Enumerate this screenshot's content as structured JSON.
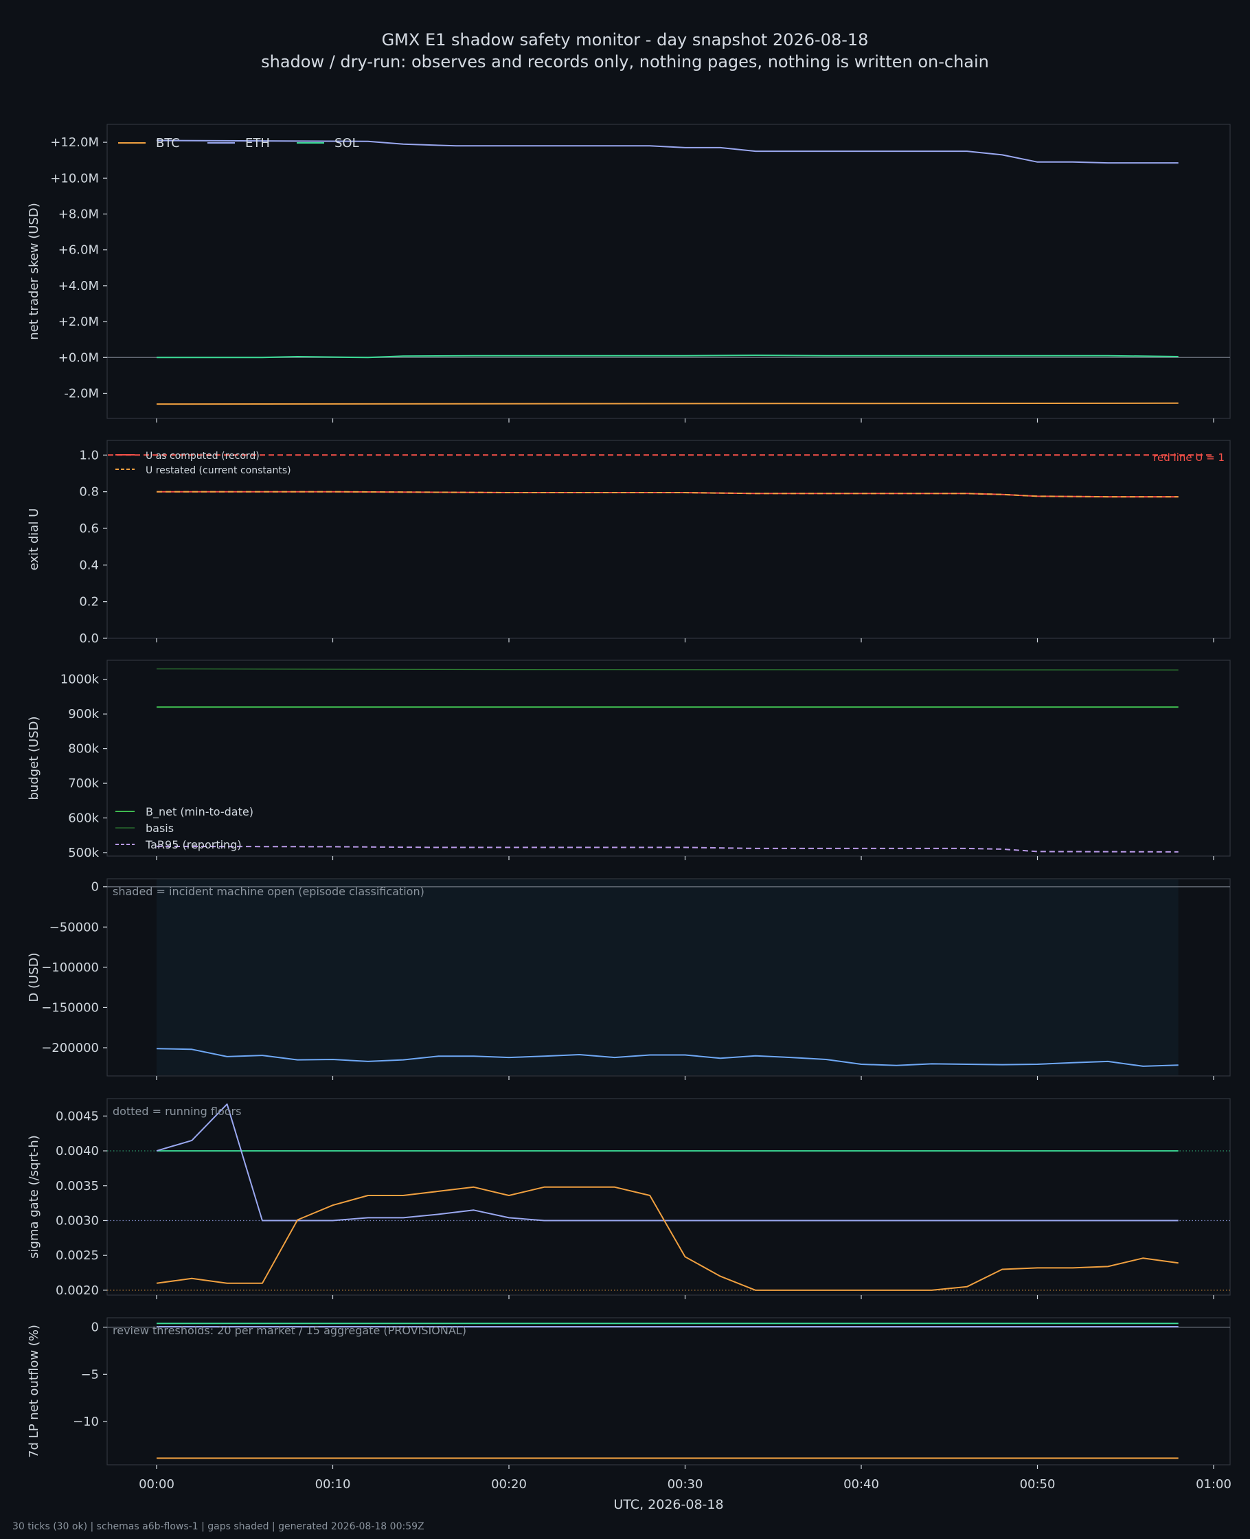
{
  "page": {
    "title": "GMX E1 shadow safety monitor - day snapshot 2026-08-18",
    "subtitle": "shadow / dry-run: observes and records only, nothing pages, nothing is written on-chain",
    "footer": "30 ticks (30 ok) | schemas a6b-flows-1 | gaps shaded | generated 2026-08-18 00:59Z"
  },
  "colors": {
    "background": "#0d1117",
    "axes_face": "#0d1117",
    "axes_edge": "#30363d",
    "tick_text": "#d0d7de",
    "BTC": "#f0a040",
    "ETH": "#9aa8f0",
    "SOL": "#3ddc97",
    "red": "#f85149",
    "green": "#3fb950",
    "basis": "#2e7d32",
    "purple": "#b99ae8",
    "blue": "#6fa8f5",
    "shade": "#0f1922",
    "note": "#8b949e"
  },
  "chart_data": [
    {
      "type": "line",
      "ylabel": "net trader skew (USD)",
      "ylim": [
        -3.4,
        13.0
      ],
      "yticks": [
        -2,
        0,
        2,
        4,
        6,
        8,
        10,
        12
      ],
      "ytick_labels": [
        "-2.0M",
        "+0.0M",
        "+2.0M",
        "+4.0M",
        "+6.0M",
        "+8.0M",
        "+10.0M",
        "+12.0M"
      ],
      "zero_line": true,
      "legend": {
        "placement": "top-left",
        "orientation": "horizontal"
      },
      "series": [
        {
          "name": "BTC",
          "color": "#f0a040",
          "x": [
            0,
            58
          ],
          "y": [
            -2.6,
            -2.55
          ]
        },
        {
          "name": "ETH",
          "color": "#9aa8f0",
          "x": [
            0,
            12,
            14,
            17,
            20,
            24,
            28,
            30,
            32,
            34,
            36,
            40,
            44,
            46,
            48,
            50,
            52,
            54,
            56,
            58
          ],
          "y": [
            12.1,
            12.05,
            11.9,
            11.8,
            11.8,
            11.8,
            11.8,
            11.7,
            11.7,
            11.5,
            11.5,
            11.5,
            11.5,
            11.5,
            11.3,
            10.9,
            10.9,
            10.85,
            10.85,
            10.85
          ]
        },
        {
          "name": "SOL",
          "color": "#3ddc97",
          "x": [
            0,
            6,
            8,
            12,
            14,
            18,
            22,
            30,
            34,
            38,
            44,
            54,
            58
          ],
          "y": [
            0.0,
            0.0,
            0.05,
            0.0,
            0.08,
            0.1,
            0.1,
            0.1,
            0.12,
            0.1,
            0.1,
            0.1,
            0.05
          ]
        }
      ]
    },
    {
      "type": "line",
      "ylabel": "exit dial U",
      "ylim": [
        0,
        1.08
      ],
      "yticks": [
        0.0,
        0.2,
        0.4,
        0.6,
        0.8,
        1.0
      ],
      "ytick_labels": [
        "0.0",
        "0.2",
        "0.4",
        "0.6",
        "0.8",
        "1.0"
      ],
      "legend": {
        "placement": "top-left",
        "orientation": "vertical"
      },
      "annotations": [
        {
          "text": "red line U = 1",
          "anchor": "top-right",
          "color": "#f85149"
        }
      ],
      "series": [
        {
          "name": "U as computed (record)",
          "color": "#f85149",
          "style": "solid",
          "x": [
            0,
            10,
            20,
            30,
            34,
            40,
            46,
            48,
            50,
            54,
            58
          ],
          "y": [
            0.8,
            0.8,
            0.795,
            0.795,
            0.79,
            0.79,
            0.79,
            0.785,
            0.775,
            0.772,
            0.772
          ]
        },
        {
          "name": "U restated (current constants)",
          "color": "#f0a040",
          "style": "dashed",
          "x": [
            0,
            10,
            20,
            30,
            34,
            40,
            46,
            48,
            50,
            54,
            58
          ],
          "y": [
            0.8,
            0.8,
            0.795,
            0.795,
            0.79,
            0.79,
            0.79,
            0.785,
            0.775,
            0.772,
            0.772
          ]
        },
        {
          "name": "",
          "color": "#f85149",
          "style": "dashed",
          "x": [
            -3,
            60
          ],
          "y": [
            1.0,
            1.0
          ]
        }
      ]
    },
    {
      "type": "line",
      "ylabel": "budget (USD)",
      "ylim": [
        490,
        1055
      ],
      "yticks": [
        500,
        600,
        700,
        800,
        900,
        1000
      ],
      "ytick_labels": [
        "500k",
        "600k",
        "700k",
        "800k",
        "900k",
        "1000k"
      ],
      "legend": {
        "placement": "lower-left",
        "orientation": "vertical"
      },
      "series": [
        {
          "name": "B_net (min-to-date)",
          "color": "#3fb950",
          "style": "solid",
          "x": [
            0,
            58
          ],
          "y": [
            920,
            920
          ]
        },
        {
          "name": "basis",
          "color": "#2e7d32",
          "style": "thin",
          "x": [
            0,
            20,
            58
          ],
          "y": [
            1030,
            1028,
            1027
          ]
        },
        {
          "name": "TaR95 (reporting)",
          "color": "#b99ae8",
          "style": "dashed",
          "x": [
            0,
            10,
            16,
            30,
            34,
            46,
            48,
            50,
            58
          ],
          "y": [
            518,
            517,
            515,
            515,
            512,
            512,
            510,
            503,
            502
          ]
        }
      ]
    },
    {
      "type": "line",
      "ylabel": "D (USD)",
      "ylim": [
        -235000,
        10000
      ],
      "yticks": [
        -200000,
        -150000,
        -100000,
        -50000,
        0
      ],
      "ytick_labels": [
        "−200000",
        "−150000",
        "−100000",
        "−50000",
        "0"
      ],
      "zero_line": true,
      "shaded_span": [
        0,
        58
      ],
      "annotations": [
        {
          "text": "shaded = incident machine open (episode classification)",
          "anchor": "top-left"
        }
      ],
      "series": [
        {
          "name": "",
          "color": "#6fa8f5",
          "x": [
            0,
            2,
            4,
            6,
            8,
            10,
            12,
            14,
            16,
            18,
            20,
            22,
            24,
            26,
            28,
            30,
            32,
            34,
            36,
            38,
            40,
            42,
            44,
            46,
            48,
            50,
            52,
            54,
            56,
            58
          ],
          "y": [
            -201000,
            -202000,
            -211000,
            -209500,
            -215000,
            -214500,
            -217000,
            -215000,
            -210500,
            -210500,
            -212000,
            -210500,
            -208500,
            -212000,
            -209000,
            -209000,
            -213000,
            -210000,
            -212000,
            -214500,
            -220500,
            -222000,
            -220000,
            -220500,
            -221000,
            -220500,
            -218500,
            -217000,
            -223000,
            -221500
          ]
        }
      ]
    },
    {
      "type": "line",
      "ylabel": "sigma gate (/sqrt-h)",
      "ylim": [
        0.00193,
        0.00475
      ],
      "yticks": [
        0.002,
        0.0025,
        0.003,
        0.0035,
        0.004,
        0.0045
      ],
      "ytick_labels": [
        "0.0020",
        "0.0025",
        "0.0030",
        "0.0035",
        "0.0040",
        "0.0045"
      ],
      "annotations": [
        {
          "text": "dotted = running floors",
          "anchor": "top-left"
        }
      ],
      "floors": [
        {
          "y": 0.004,
          "color": "#3ddc97"
        },
        {
          "y": 0.003,
          "color": "#9aa8f0"
        },
        {
          "y": 0.002,
          "color": "#f0a040"
        }
      ],
      "series": [
        {
          "name": "",
          "color": "#3ddc97",
          "x": [
            0,
            58
          ],
          "y": [
            0.004,
            0.004
          ]
        },
        {
          "name": "",
          "color": "#9aa8f0",
          "x": [
            0,
            2,
            4,
            6,
            8,
            10,
            12,
            14,
            16,
            18,
            20,
            22,
            24,
            58
          ],
          "y": [
            0.004,
            0.00415,
            0.00467,
            0.003,
            0.003,
            0.003,
            0.00304,
            0.00304,
            0.00309,
            0.00315,
            0.00304,
            0.003,
            0.003,
            0.003
          ]
        },
        {
          "name": "",
          "color": "#f0a040",
          "x": [
            0,
            2,
            4,
            6,
            8,
            10,
            12,
            14,
            16,
            18,
            20,
            22,
            24,
            26,
            28,
            30,
            32,
            34,
            36,
            38,
            40,
            42,
            44,
            46,
            48,
            50,
            52,
            54,
            56,
            58
          ],
          "y": [
            0.0021,
            0.00217,
            0.0021,
            0.0021,
            0.00301,
            0.00322,
            0.00336,
            0.00336,
            0.00342,
            0.00348,
            0.00336,
            0.00348,
            0.00348,
            0.00348,
            0.00336,
            0.00248,
            0.0022,
            0.002,
            0.002,
            0.002,
            0.002,
            0.002,
            0.002,
            0.00205,
            0.0023,
            0.00232,
            0.00232,
            0.00234,
            0.00246,
            0.00239
          ]
        }
      ]
    },
    {
      "type": "line",
      "ylabel": "7d LP net outflow (%)",
      "ylim": [
        -14.6,
        1.0
      ],
      "yticks": [
        -10,
        -5,
        0
      ],
      "ytick_labels": [
        "−10",
        "−5",
        "0"
      ],
      "zero_line": true,
      "annotations": [
        {
          "text": "review thresholds: 20 per market / 15 aggregate (PROVISIONAL)",
          "anchor": "top-left"
        }
      ],
      "xticks": [
        0,
        10,
        20,
        30,
        40,
        50,
        60
      ],
      "xtick_labels": [
        "00:00",
        "00:10",
        "00:20",
        "00:30",
        "00:40",
        "00:50",
        "01:00"
      ],
      "xlabel": "UTC, 2026-08-18",
      "series": [
        {
          "name": "",
          "color": "#3ddc97",
          "x": [
            0,
            58
          ],
          "y": [
            0.4,
            0.4
          ]
        },
        {
          "name": "",
          "color": "#9aa8f0",
          "x": [
            0,
            58
          ],
          "y": [
            0.05,
            0.05
          ]
        },
        {
          "name": "",
          "color": "#f0a040",
          "x": [
            0,
            58
          ],
          "y": [
            -13.9,
            -13.9
          ]
        }
      ]
    }
  ]
}
